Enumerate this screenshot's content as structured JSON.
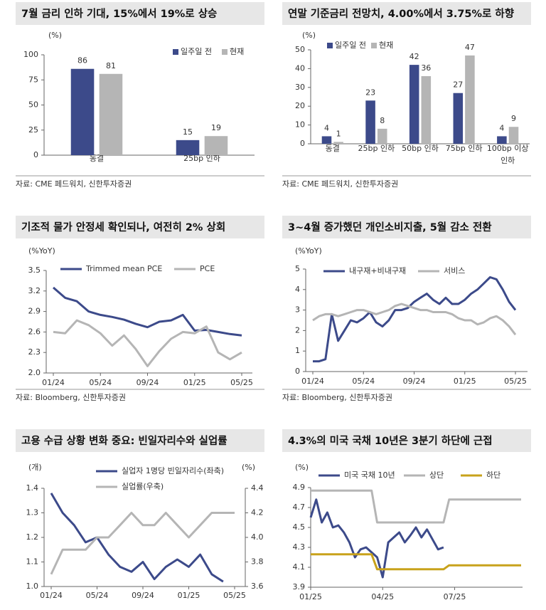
{
  "chart_data": [
    {
      "type": "bar",
      "title": "7월 금리 인하 기대, 15%에서 19%로 상승",
      "unit": "(%)",
      "categories": [
        "동결",
        "25bp 인하"
      ],
      "series": [
        {
          "name": "일주일 전",
          "color": "#3c4a8a",
          "values": [
            86,
            15
          ]
        },
        {
          "name": "현재",
          "color": "#b5b5b5",
          "values": [
            81,
            19
          ]
        }
      ],
      "ylim": [
        0,
        100
      ],
      "yticks": [
        0,
        25,
        50,
        75,
        100
      ],
      "source": "자료: CME 페드워치, 신한투자증권"
    },
    {
      "type": "bar",
      "title": "연말 기준금리 전망치, 4.00%에서 3.75%로 하향",
      "unit": "(%)",
      "categories": [
        "동결",
        "25bp 인하",
        "50bp 인하",
        "75bp 인하",
        "100bp 이상 인하"
      ],
      "series": [
        {
          "name": "일주일 전",
          "color": "#3c4a8a",
          "values": [
            4,
            23,
            42,
            27,
            4
          ]
        },
        {
          "name": "현재",
          "color": "#b5b5b5",
          "values": [
            1,
            8,
            36,
            47,
            9
          ]
        }
      ],
      "ylim": [
        0,
        50
      ],
      "yticks": [
        0,
        10,
        20,
        30,
        40,
        50
      ],
      "source": "자료: CME 페드워치, 신한투자증권"
    },
    {
      "type": "line",
      "title": "기조적 물가 안정세 확인되나, 여전히 2% 상회",
      "unit": "(%YoY)",
      "categories": [
        "01/24",
        null,
        null,
        null,
        "05/24",
        null,
        null,
        null,
        "09/24",
        null,
        null,
        null,
        "01/25",
        null,
        null,
        null,
        "05/25"
      ],
      "series": [
        {
          "name": "Trimmed mean PCE",
          "color": "#3c4a8a",
          "values": [
            3.25,
            3.1,
            3.05,
            2.9,
            2.85,
            2.82,
            2.78,
            2.72,
            2.67,
            2.75,
            2.77,
            2.85,
            2.62,
            2.63,
            2.6,
            2.57,
            2.55
          ]
        },
        {
          "name": "PCE",
          "color": "#b5b5b5",
          "values": [
            2.6,
            2.58,
            2.77,
            2.7,
            2.58,
            2.4,
            2.55,
            2.35,
            2.1,
            2.32,
            2.5,
            2.6,
            2.58,
            2.68,
            2.3,
            2.2,
            2.3
          ]
        }
      ],
      "ylim": [
        2.0,
        3.5
      ],
      "yticks": [
        {
          "value": 2,
          "label": "2.0"
        },
        2.3,
        2.6,
        2.9,
        3.2,
        3.5
      ],
      "source": "자료: Bloomberg, 신한투자증권"
    },
    {
      "type": "line",
      "title": "3~4월 증가했던 개인소비지출, 5월 감소 전환",
      "unit": "(%YoY)",
      "categories": [
        "01/24",
        null,
        null,
        null,
        null,
        null,
        null,
        null,
        "05/24",
        null,
        null,
        null,
        null,
        null,
        null,
        null,
        "09/24",
        null,
        null,
        null,
        null,
        null,
        null,
        null,
        "01/25",
        null,
        null,
        null,
        null,
        null,
        null,
        null,
        "05/25"
      ],
      "series": [
        {
          "name": "내구재+비내구재",
          "color": "#3c4a8a",
          "values": [
            0.5,
            0.5,
            0.6,
            2.8,
            1.5,
            2.0,
            2.5,
            2.4,
            2.6,
            2.9,
            2.4,
            2.2,
            2.5,
            3.0,
            3.0,
            3.1,
            3.4,
            3.6,
            3.8,
            3.5,
            3.3,
            3.6,
            3.3,
            3.3,
            3.5,
            3.8,
            4.0,
            4.3,
            4.6,
            4.5,
            4.0,
            3.4,
            3.0
          ]
        },
        {
          "name": "서비스",
          "color": "#b5b5b5",
          "values": [
            2.5,
            2.7,
            2.8,
            2.8,
            2.7,
            2.8,
            2.9,
            3.0,
            3.0,
            2.9,
            2.8,
            2.9,
            3.0,
            3.2,
            3.3,
            3.2,
            3.1,
            3.0,
            3.0,
            2.9,
            2.9,
            2.9,
            2.8,
            2.6,
            2.5,
            2.5,
            2.3,
            2.4,
            2.6,
            2.7,
            2.5,
            2.2,
            1.8
          ]
        }
      ],
      "ylim": [
        0,
        5
      ],
      "yticks": [
        0,
        1,
        2,
        3,
        4,
        5
      ],
      "source": "자료: Bloomberg, 신한투자증권"
    },
    {
      "type": "line",
      "title": "고용 수급 상황 변화 중요: 빈일자리수와 실업률",
      "unit": "(개)",
      "y2unit": "(%)",
      "categories": [
        "01/24",
        null,
        null,
        null,
        "05/24",
        null,
        null,
        null,
        "09/24",
        null,
        null,
        null,
        "01/25",
        null,
        null,
        null,
        "05/25"
      ],
      "series": [
        {
          "name": "실업자 1명당 빈일자리수(좌축)",
          "color": "#3c4a8a",
          "values": [
            1.38,
            1.3,
            1.25,
            1.18,
            1.2,
            1.13,
            1.08,
            1.06,
            1.1,
            1.03,
            1.08,
            1.11,
            1.08,
            1.13,
            1.05,
            1.02,
            null
          ]
        },
        {
          "name": "실업률(우축)",
          "color": "#b5b5b5",
          "axis": "y2",
          "values": [
            3.7,
            3.9,
            3.9,
            3.9,
            4.0,
            4.0,
            4.1,
            4.2,
            4.1,
            4.1,
            4.2,
            4.1,
            4.0,
            4.1,
            4.2,
            4.2,
            4.2
          ]
        }
      ],
      "ylim": [
        1.0,
        1.4
      ],
      "yticks": [
        {
          "value": 1,
          "label": "1.0"
        },
        1.1,
        1.2,
        1.3,
        1.4
      ],
      "y2lim": [
        3.6,
        4.4
      ],
      "y2ticks": [
        3.6,
        3.8,
        {
          "value": 4,
          "label": "4.0"
        },
        4.2,
        4.4
      ]
    },
    {
      "type": "line",
      "title": "4.3%의 미국 국채 10년은 3분기 하단에 근접",
      "unit": "(%)",
      "categories": [
        "01/25",
        null,
        null,
        null,
        null,
        null,
        null,
        null,
        null,
        null,
        null,
        null,
        null,
        "04/25",
        null,
        null,
        null,
        null,
        null,
        null,
        null,
        null,
        null,
        null,
        null,
        null,
        "07/25",
        null,
        null,
        null,
        null,
        null,
        null,
        null,
        null,
        null,
        null,
        null,
        null
      ],
      "series": [
        {
          "name": "미국 국채 10년",
          "color": "#3c4a8a",
          "values": [
            4.6,
            4.78,
            4.55,
            4.65,
            4.5,
            4.52,
            4.45,
            4.35,
            4.2,
            4.28,
            4.3,
            4.25,
            4.2,
            4.0,
            4.35,
            4.4,
            4.45,
            4.35,
            4.42,
            4.5,
            4.4,
            4.48,
            4.38,
            4.28,
            4.3,
            null,
            null,
            null,
            null,
            null,
            null,
            null,
            null,
            null,
            null,
            null,
            null,
            null,
            null
          ]
        },
        {
          "name": "상단",
          "color": "#b5b5b5",
          "values": [
            4.87,
            4.87,
            4.87,
            4.87,
            4.87,
            4.87,
            4.87,
            4.87,
            4.87,
            4.87,
            4.87,
            4.87,
            4.55,
            4.55,
            4.55,
            4.55,
            4.55,
            4.55,
            4.55,
            4.55,
            4.55,
            4.55,
            4.55,
            4.55,
            4.55,
            4.78,
            4.78,
            4.78,
            4.78,
            4.78,
            4.78,
            4.78,
            4.78,
            4.78,
            4.78,
            4.78,
            4.78,
            4.78,
            4.78
          ]
        },
        {
          "name": "하단",
          "color": "#c8a21b",
          "values": [
            4.23,
            4.23,
            4.23,
            4.23,
            4.23,
            4.23,
            4.23,
            4.23,
            4.23,
            4.23,
            4.23,
            4.23,
            4.08,
            4.08,
            4.08,
            4.08,
            4.08,
            4.08,
            4.08,
            4.08,
            4.08,
            4.08,
            4.08,
            4.08,
            4.08,
            4.12,
            4.12,
            4.12,
            4.12,
            4.12,
            4.12,
            4.12,
            4.12,
            4.12,
            4.12,
            4.12,
            4.12,
            4.12,
            4.12
          ]
        }
      ],
      "ylim": [
        3.9,
        4.9
      ],
      "yticks": [
        3.9,
        4.1,
        4.3,
        4.5,
        4.7,
        4.9
      ]
    }
  ]
}
